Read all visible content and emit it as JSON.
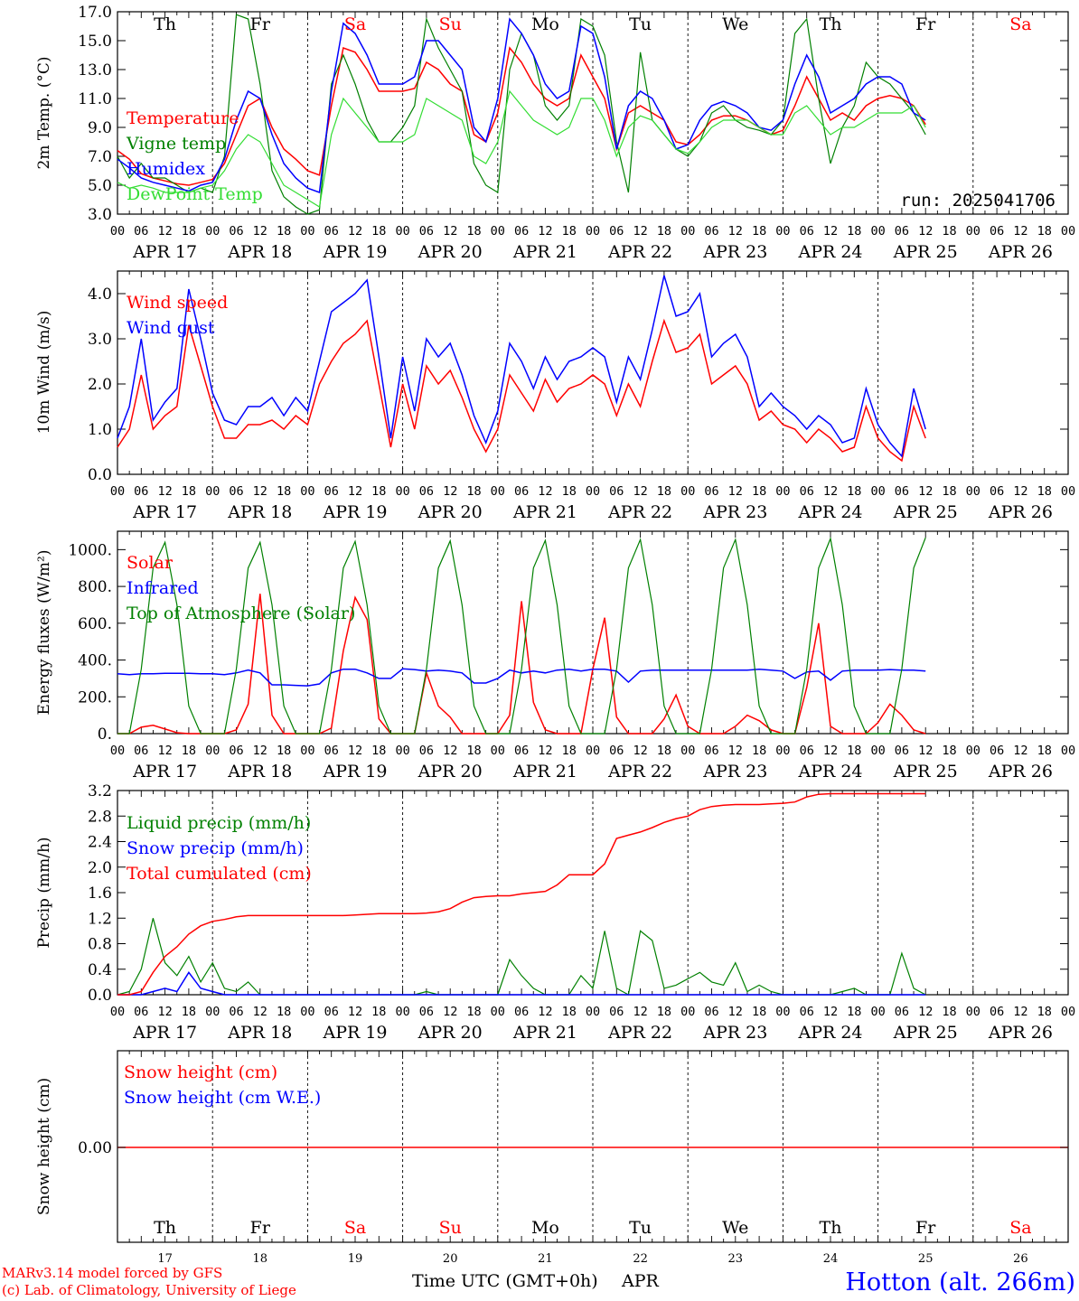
{
  "day_labels": [
    "Th",
    "Fr",
    "Sa",
    "Su",
    "Mo",
    "Tu",
    "We",
    "Th",
    "Fr",
    "Sa"
  ],
  "weekend_days": [
    2,
    3,
    9
  ],
  "date_labels": [
    "APR 17",
    "APR 18",
    "APR 19",
    "APR 20",
    "APR 21",
    "APR 22",
    "APR 23",
    "APR 24",
    "APR 25",
    "APR 26"
  ],
  "hour_labels": [
    "00",
    "06",
    "12",
    "18"
  ],
  "bottom_day_numbers": [
    "17",
    "18",
    "19",
    "20",
    "21",
    "22",
    "23",
    "24",
    "25",
    "26"
  ],
  "colors": {
    "red": "#ff0000",
    "green": "#008000",
    "blue": "#0000ff",
    "lightgreen": "#33dd33",
    "weekend": "#ff0000"
  },
  "footer": {
    "model": "MARv3.14 model forced by GFS",
    "lab": "(c) Lab. of Climatology, University of Liege",
    "xlabel": "Time UTC (GMT+0h)",
    "month": "APR",
    "station": "Hotton (alt. 266m)"
  },
  "chart_data": [
    {
      "type": "line",
      "ylabel": "2m Temp. (°C)",
      "ylim": [
        3.0,
        17.0
      ],
      "yticks": [
        "3.0",
        "5.0",
        "7.0",
        "9.0",
        "11.0",
        "13.0",
        "15.0",
        "17.0"
      ],
      "annotation": "run: 2025041706",
      "x_step_hours": 3,
      "series": [
        {
          "name": "Temperature",
          "color": "red",
          "values": [
            7.4,
            6.8,
            5.8,
            5.5,
            5.3,
            5.1,
            5.0,
            5.2,
            5.4,
            6.5,
            8.5,
            10.5,
            11.0,
            9.0,
            7.5,
            6.8,
            6.0,
            5.7,
            10.5,
            14.5,
            14.2,
            13.0,
            11.5,
            11.5,
            11.5,
            11.7,
            13.5,
            13.0,
            12.0,
            11.5,
            8.5,
            8.0,
            10.0,
            14.5,
            13.5,
            12.0,
            11.0,
            10.5,
            11.0,
            14.0,
            12.5,
            11.0,
            7.5,
            10.0,
            10.5,
            10.0,
            9.5,
            8.0,
            7.8,
            8.5,
            9.5,
            9.8,
            9.8,
            9.5,
            9.0,
            8.5,
            8.8,
            10.5,
            12.5,
            11.0,
            9.5,
            10.0,
            9.5,
            10.5,
            11.0,
            11.2,
            11.0,
            10.5,
            9.2
          ]
        },
        {
          "name": "Vigne temp",
          "color": "green",
          "values": [
            7.0,
            5.5,
            6.5,
            5.5,
            5.5,
            5.0,
            4.5,
            4.8,
            4.5,
            7.0,
            16.8,
            16.5,
            12.0,
            6.0,
            4.2,
            3.5,
            3.0,
            3.3,
            12.0,
            14.0,
            12.0,
            9.5,
            8.0,
            8.0,
            9.0,
            10.5,
            16.5,
            14.5,
            13.0,
            11.5,
            6.5,
            5.0,
            4.5,
            13.0,
            15.5,
            14.0,
            10.5,
            9.5,
            10.5,
            16.5,
            16.0,
            14.0,
            8.0,
            4.5,
            14.2,
            9.5,
            8.5,
            7.5,
            7.0,
            8.0,
            10.0,
            10.5,
            9.5,
            9.0,
            8.8,
            8.5,
            9.5,
            15.5,
            16.5,
            11.0,
            6.5,
            9.0,
            10.5,
            13.5,
            12.5,
            12.0,
            11.0,
            10.0,
            8.5
          ]
        },
        {
          "name": "Humidex",
          "color": "blue",
          "values": [
            6.8,
            6.2,
            5.5,
            5.2,
            5.0,
            4.8,
            4.6,
            5.0,
            5.2,
            6.8,
            9.5,
            11.5,
            11.0,
            8.5,
            6.5,
            5.5,
            4.8,
            4.5,
            11.5,
            16.2,
            15.5,
            14.0,
            12.0,
            12.0,
            12.0,
            12.5,
            15.0,
            15.0,
            14.0,
            13.0,
            9.0,
            8.0,
            11.0,
            16.5,
            15.5,
            14.0,
            12.0,
            11.0,
            11.5,
            16.0,
            15.5,
            12.5,
            7.5,
            10.5,
            11.5,
            11.0,
            9.5,
            7.5,
            7.8,
            9.5,
            10.5,
            10.8,
            10.5,
            10.0,
            9.0,
            8.8,
            9.5,
            12.0,
            14.0,
            12.5,
            10.0,
            10.5,
            11.0,
            12.0,
            12.5,
            12.5,
            12.0,
            10.0,
            9.5
          ]
        },
        {
          "name": "DewPoint Temp",
          "color": "lightgreen",
          "values": [
            5.2,
            4.8,
            5.0,
            4.8,
            4.5,
            4.5,
            4.5,
            4.8,
            5.0,
            6.0,
            7.5,
            8.5,
            8.0,
            6.5,
            5.0,
            4.5,
            4.0,
            3.5,
            8.5,
            11.0,
            10.0,
            9.0,
            8.0,
            8.0,
            8.0,
            8.5,
            11.0,
            10.5,
            10.0,
            9.5,
            7.0,
            6.5,
            8.0,
            11.5,
            10.5,
            9.5,
            9.0,
            8.5,
            9.0,
            11.0,
            11.0,
            9.5,
            7.0,
            9.0,
            9.8,
            9.5,
            8.5,
            7.5,
            7.2,
            8.0,
            9.0,
            9.5,
            9.5,
            9.5,
            9.0,
            8.5,
            8.5,
            10.0,
            10.5,
            9.5,
            8.5,
            9.0,
            9.0,
            9.5,
            10.0,
            10.0,
            10.0,
            10.5,
            9.0
          ]
        }
      ]
    },
    {
      "type": "line",
      "ylabel": "10m Wind (m/s)",
      "ylim": [
        0.0,
        4.5
      ],
      "yticks": [
        "0.0",
        "1.0",
        "2.0",
        "3.0",
        "4.0"
      ],
      "x_step_hours": 3,
      "series": [
        {
          "name": "Wind speed",
          "color": "red",
          "values": [
            0.6,
            1.0,
            2.2,
            1.0,
            1.3,
            1.5,
            3.3,
            2.4,
            1.5,
            0.8,
            0.8,
            1.1,
            1.1,
            1.2,
            1.0,
            1.3,
            1.1,
            2.0,
            2.5,
            2.9,
            3.1,
            3.4,
            2.0,
            0.6,
            2.0,
            1.0,
            2.4,
            2.0,
            2.3,
            1.7,
            1.0,
            0.5,
            1.0,
            2.2,
            1.8,
            1.4,
            2.1,
            1.6,
            1.9,
            2.0,
            2.2,
            2.0,
            1.3,
            2.0,
            1.5,
            2.5,
            3.4,
            2.7,
            2.8,
            3.1,
            2.0,
            2.2,
            2.4,
            2.0,
            1.2,
            1.4,
            1.1,
            1.0,
            0.7,
            1.0,
            0.8,
            0.5,
            0.6,
            1.5,
            0.8,
            0.5,
            0.3,
            1.5,
            0.8
          ]
        },
        {
          "name": "Wind gust",
          "color": "blue",
          "values": [
            0.8,
            1.5,
            3.0,
            1.2,
            1.6,
            1.9,
            4.1,
            3.0,
            1.8,
            1.2,
            1.1,
            1.5,
            1.5,
            1.7,
            1.3,
            1.7,
            1.4,
            2.5,
            3.6,
            3.8,
            4.0,
            4.3,
            2.6,
            0.8,
            2.6,
            1.4,
            3.0,
            2.6,
            2.9,
            2.2,
            1.3,
            0.7,
            1.4,
            2.9,
            2.5,
            1.9,
            2.6,
            2.1,
            2.5,
            2.6,
            2.8,
            2.6,
            1.6,
            2.6,
            2.1,
            3.2,
            4.4,
            3.5,
            3.6,
            4.0,
            2.6,
            2.9,
            3.1,
            2.6,
            1.5,
            1.8,
            1.5,
            1.3,
            1.0,
            1.3,
            1.1,
            0.7,
            0.8,
            1.9,
            1.1,
            0.7,
            0.4,
            1.9,
            1.0
          ]
        }
      ]
    },
    {
      "type": "line",
      "ylabel": "Energy fluxes (W/m²)",
      "ylim": [
        0,
        1100
      ],
      "yticks": [
        "0.",
        "200.",
        "400.",
        "600.",
        "800.",
        "1000."
      ],
      "x_step_hours": 3,
      "series": [
        {
          "name": "Solar",
          "color": "red",
          "values": [
            0,
            0,
            35,
            45,
            25,
            5,
            0,
            0,
            0,
            0,
            20,
            160,
            760,
            100,
            0,
            0,
            0,
            0,
            30,
            450,
            740,
            620,
            80,
            0,
            0,
            0,
            330,
            150,
            90,
            0,
            0,
            0,
            0,
            100,
            720,
            170,
            20,
            0,
            0,
            0,
            350,
            630,
            90,
            0,
            0,
            0,
            80,
            210,
            40,
            0,
            0,
            0,
            40,
            100,
            70,
            20,
            0,
            0,
            250,
            600,
            40,
            0,
            0,
            0,
            60,
            160,
            100,
            20,
            0
          ]
        },
        {
          "name": "Infrared",
          "color": "blue",
          "values": [
            325,
            320,
            325,
            325,
            328,
            328,
            328,
            325,
            325,
            320,
            330,
            345,
            330,
            265,
            265,
            262,
            260,
            270,
            330,
            350,
            350,
            330,
            300,
            300,
            352,
            348,
            340,
            345,
            340,
            330,
            275,
            275,
            300,
            345,
            330,
            340,
            330,
            345,
            350,
            340,
            350,
            350,
            340,
            280,
            340,
            345,
            345,
            345,
            345,
            345,
            345,
            345,
            345,
            345,
            350,
            345,
            340,
            300,
            335,
            340,
            290,
            340,
            345,
            345,
            345,
            348,
            345,
            345,
            340
          ]
        },
        {
          "name": "Top of Atmosphere (Solar)",
          "color": "green",
          "values": [
            0,
            0,
            350,
            900,
            1040,
            700,
            150,
            0,
            0,
            0,
            350,
            900,
            1040,
            700,
            150,
            0,
            0,
            0,
            350,
            900,
            1045,
            700,
            150,
            0,
            0,
            0,
            350,
            900,
            1048,
            700,
            150,
            0,
            0,
            0,
            350,
            900,
            1050,
            700,
            150,
            0,
            0,
            0,
            350,
            900,
            1055,
            700,
            150,
            0,
            0,
            0,
            350,
            900,
            1055,
            700,
            150,
            0,
            0,
            0,
            350,
            900,
            1060,
            700,
            150,
            0,
            0,
            0,
            350,
            900,
            1065
          ]
        }
      ]
    },
    {
      "type": "line",
      "ylabel": "Precip (mm/h)",
      "ylim": [
        0.0,
        3.2
      ],
      "yticks": [
        "0.0",
        "0.4",
        "0.8",
        "1.2",
        "1.6",
        "2.0",
        "2.4",
        "2.8",
        "3.2"
      ],
      "x_step_hours": 3,
      "series": [
        {
          "name": "Liquid precip (mm/h)",
          "color": "green",
          "values": [
            0,
            0.05,
            0.4,
            1.2,
            0.5,
            0.3,
            0.6,
            0.2,
            0.5,
            0.1,
            0.05,
            0.2,
            0,
            0,
            0,
            0,
            0,
            0,
            0,
            0,
            0,
            0,
            0,
            0,
            0,
            0,
            0.05,
            0,
            0,
            0,
            0,
            0,
            0,
            0.55,
            0.3,
            0.1,
            0,
            0,
            0,
            0.3,
            0.1,
            1.0,
            0.1,
            0,
            1.0,
            0.85,
            0.1,
            0.15,
            0.25,
            0.35,
            0.2,
            0.15,
            0.5,
            0.05,
            0.15,
            0.05,
            0,
            0,
            0,
            0,
            0,
            0.05,
            0.1,
            0,
            0,
            0,
            0.65,
            0.1,
            0
          ]
        },
        {
          "name": "Snow precip (mm/h)",
          "color": "blue",
          "values": [
            0,
            0,
            0,
            0.05,
            0.1,
            0.05,
            0.35,
            0.1,
            0.05,
            0,
            0,
            0,
            0,
            0,
            0,
            0,
            0,
            0,
            0,
            0,
            0,
            0,
            0,
            0,
            0,
            0,
            0,
            0,
            0,
            0,
            0,
            0,
            0,
            0,
            0,
            0,
            0,
            0,
            0,
            0,
            0,
            0,
            0,
            0,
            0,
            0,
            0,
            0,
            0,
            0,
            0,
            0,
            0,
            0,
            0,
            0,
            0,
            0,
            0,
            0,
            0,
            0,
            0,
            0,
            0,
            0,
            0,
            0,
            0
          ]
        },
        {
          "name": "Total cumulated (cm)",
          "color": "red",
          "values": [
            0,
            0,
            0.05,
            0.35,
            0.6,
            0.75,
            0.95,
            1.08,
            1.15,
            1.18,
            1.22,
            1.24,
            1.24,
            1.24,
            1.24,
            1.24,
            1.24,
            1.24,
            1.24,
            1.24,
            1.25,
            1.26,
            1.27,
            1.27,
            1.27,
            1.27,
            1.28,
            1.3,
            1.35,
            1.45,
            1.52,
            1.54,
            1.55,
            1.55,
            1.58,
            1.6,
            1.62,
            1.72,
            1.88,
            1.88,
            1.88,
            2.05,
            2.45,
            2.5,
            2.55,
            2.62,
            2.7,
            2.76,
            2.8,
            2.9,
            2.95,
            2.97,
            2.98,
            2.98,
            2.98,
            2.99,
            3.0,
            3.02,
            3.1,
            3.14,
            3.15,
            3.15,
            3.15,
            3.15,
            3.15,
            3.15,
            3.15,
            3.15,
            3.15
          ]
        }
      ]
    },
    {
      "type": "line",
      "ylabel": "Snow height (cm)",
      "yticks": [
        "0.00"
      ],
      "series": [
        {
          "name": "Snow height (cm)",
          "color": "red",
          "values": [
            0,
            0
          ]
        },
        {
          "name": "Snow height (cm W.E.)",
          "color": "blue",
          "values": []
        }
      ]
    }
  ]
}
